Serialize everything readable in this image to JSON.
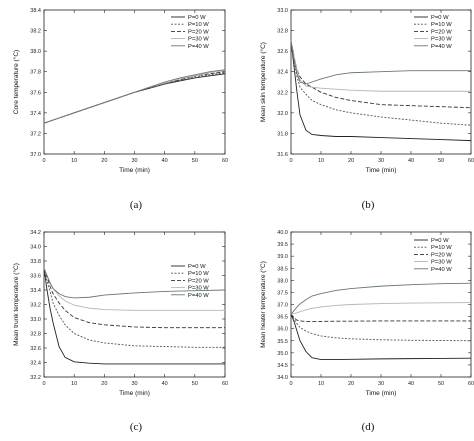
{
  "chart_data": [
    {
      "type": "line",
      "caption": "(a)",
      "xlabel": "Time (min)",
      "ylabel": "Core temperature (°C)",
      "xlim": [
        0,
        60
      ],
      "ylim": [
        37.0,
        38.4
      ],
      "xticks": [
        0,
        10,
        20,
        30,
        40,
        50,
        60
      ],
      "yticks": [
        "37.0",
        "37.2",
        "37.4",
        "37.6",
        "37.8",
        "38.0",
        "38.2",
        "38.4"
      ],
      "legend_position": "top-right",
      "x": [
        0,
        5,
        10,
        15,
        20,
        25,
        30,
        35,
        40,
        45,
        50,
        55,
        60
      ],
      "series": [
        {
          "name": "P=0 W",
          "color": "#222222",
          "dash": "",
          "values": [
            37.3,
            37.35,
            37.4,
            37.45,
            37.5,
            37.55,
            37.6,
            37.64,
            37.68,
            37.71,
            37.74,
            37.76,
            37.78
          ]
        },
        {
          "name": "P=10 W",
          "color": "#555555",
          "dash": "2,1.5",
          "values": [
            37.3,
            37.35,
            37.4,
            37.45,
            37.5,
            37.55,
            37.6,
            37.64,
            37.68,
            37.72,
            37.75,
            37.77,
            37.79
          ]
        },
        {
          "name": "P=20 W",
          "color": "#333333",
          "dash": "4,2",
          "values": [
            37.3,
            37.35,
            37.4,
            37.45,
            37.5,
            37.55,
            37.6,
            37.64,
            37.69,
            37.72,
            37.76,
            37.78,
            37.8
          ]
        },
        {
          "name": "P=30 W",
          "color": "#b5b5b5",
          "dash": "",
          "values": [
            37.3,
            37.35,
            37.4,
            37.45,
            37.5,
            37.55,
            37.6,
            37.65,
            37.69,
            37.73,
            37.76,
            37.79,
            37.81
          ]
        },
        {
          "name": "P=40 W",
          "color": "#6a7a6a",
          "dash": "",
          "values": [
            37.3,
            37.35,
            37.4,
            37.45,
            37.5,
            37.55,
            37.6,
            37.65,
            37.7,
            37.74,
            37.77,
            37.8,
            37.82
          ]
        }
      ]
    },
    {
      "type": "line",
      "caption": "(b)",
      "xlabel": "Time (min)",
      "ylabel": "Mean skin temperature (°C)",
      "xlim": [
        0,
        60
      ],
      "ylim": [
        31.6,
        33.0
      ],
      "xticks": [
        0,
        10,
        20,
        30,
        40,
        50,
        60
      ],
      "yticks": [
        "31.6",
        "31.8",
        "32.0",
        "32.2",
        "32.4",
        "32.6",
        "32.8",
        "33.0"
      ],
      "legend_position": "top-right",
      "x": [
        0,
        1,
        2,
        3,
        5,
        7,
        10,
        15,
        20,
        30,
        40,
        50,
        60
      ],
      "series": [
        {
          "name": "P=0 W",
          "color": "#222222",
          "dash": "",
          "values": [
            32.7,
            32.45,
            32.2,
            31.98,
            31.83,
            31.79,
            31.78,
            31.77,
            31.77,
            31.76,
            31.75,
            31.74,
            31.73
          ]
        },
        {
          "name": "P=10 W",
          "color": "#555555",
          "dash": "2,1.5",
          "values": [
            32.7,
            32.5,
            32.35,
            32.25,
            32.18,
            32.12,
            32.08,
            32.03,
            32.0,
            31.96,
            31.93,
            31.9,
            31.88
          ]
        },
        {
          "name": "P=20 W",
          "color": "#333333",
          "dash": "4,2",
          "values": [
            32.7,
            32.55,
            32.42,
            32.35,
            32.28,
            32.25,
            32.2,
            32.15,
            32.12,
            32.08,
            32.07,
            32.06,
            32.05
          ]
        },
        {
          "name": "P=30 W",
          "color": "#b5b5b5",
          "dash": "",
          "values": [
            32.7,
            32.55,
            32.42,
            32.32,
            32.26,
            32.25,
            32.24,
            32.23,
            32.22,
            32.21,
            32.21,
            32.21,
            32.21
          ]
        },
        {
          "name": "P=40 W",
          "color": "#6a7a6a",
          "dash": "",
          "values": [
            32.7,
            32.52,
            32.38,
            32.3,
            32.28,
            32.3,
            32.33,
            32.37,
            32.39,
            32.4,
            32.41,
            32.41,
            32.41
          ]
        }
      ]
    },
    {
      "type": "line",
      "caption": "(c)",
      "xlabel": "Time (min)",
      "ylabel": "Mean trunk temperature (°C)",
      "xlim": [
        0,
        60
      ],
      "ylim": [
        32.2,
        34.2
      ],
      "xticks": [
        0,
        10,
        20,
        30,
        40,
        50,
        60
      ],
      "yticks": [
        "32.2",
        "32.4",
        "32.6",
        "32.8",
        "33.0",
        "33.2",
        "33.4",
        "33.6",
        "33.8",
        "34.0",
        "34.2"
      ],
      "legend_position": "right",
      "x": [
        0,
        1,
        2,
        3,
        5,
        7,
        10,
        15,
        20,
        30,
        40,
        50,
        60
      ],
      "series": [
        {
          "name": "P=0 W",
          "color": "#222222",
          "dash": "",
          "values": [
            33.7,
            33.4,
            33.15,
            32.95,
            32.62,
            32.47,
            32.41,
            32.39,
            32.38,
            32.38,
            32.38,
            32.38,
            32.38
          ]
        },
        {
          "name": "P=10 W",
          "color": "#555555",
          "dash": "2,1.5",
          "values": [
            33.7,
            33.52,
            33.38,
            33.22,
            33.05,
            32.92,
            32.8,
            32.71,
            32.67,
            32.63,
            32.62,
            32.61,
            32.61
          ]
        },
        {
          "name": "P=20 W",
          "color": "#333333",
          "dash": "4,2",
          "values": [
            33.7,
            33.58,
            33.45,
            33.35,
            33.22,
            33.12,
            33.02,
            32.95,
            32.92,
            32.89,
            32.88,
            32.88,
            32.88
          ]
        },
        {
          "name": "P=30 W",
          "color": "#b5b5b5",
          "dash": "",
          "values": [
            33.7,
            33.6,
            33.5,
            33.42,
            33.32,
            33.25,
            33.19,
            33.15,
            33.13,
            33.12,
            33.12,
            33.12,
            33.12
          ]
        },
        {
          "name": "P=40 W",
          "color": "#6a7a6a",
          "dash": "",
          "values": [
            33.7,
            33.6,
            33.5,
            33.42,
            33.35,
            33.31,
            33.29,
            33.3,
            33.33,
            33.36,
            33.38,
            33.39,
            33.4
          ]
        }
      ]
    },
    {
      "type": "line",
      "caption": "(d)",
      "xlabel": "Time (min)",
      "ylabel": "Mean heater temperature (°C)",
      "xlim": [
        0,
        60
      ],
      "ylim": [
        34.0,
        40.0
      ],
      "xticks": [
        0,
        10,
        20,
        30,
        40,
        50,
        60
      ],
      "yticks": [
        "34.0",
        "34.5",
        "35.0",
        "35.5",
        "36.0",
        "36.5",
        "37.0",
        "37.5",
        "38.0",
        "38.5",
        "39.0",
        "39.5",
        "40.0"
      ],
      "legend_position": "top-right",
      "x": [
        0,
        1,
        2,
        3,
        5,
        7,
        10,
        15,
        20,
        30,
        40,
        50,
        60
      ],
      "series": [
        {
          "name": "P=0 W",
          "color": "#222222",
          "dash": "",
          "values": [
            36.6,
            36.3,
            35.9,
            35.5,
            35.05,
            34.8,
            34.72,
            34.72,
            34.73,
            34.75,
            34.76,
            34.77,
            34.78
          ]
        },
        {
          "name": "P=10 W",
          "color": "#555555",
          "dash": "2,1.5",
          "values": [
            36.6,
            36.4,
            36.2,
            36.05,
            35.9,
            35.8,
            35.7,
            35.62,
            35.58,
            35.54,
            35.52,
            35.51,
            35.5
          ]
        },
        {
          "name": "P=20 W",
          "color": "#333333",
          "dash": "4,2",
          "values": [
            36.6,
            36.45,
            36.35,
            36.32,
            36.3,
            36.3,
            36.3,
            36.31,
            36.31,
            36.32,
            36.32,
            36.32,
            36.32
          ]
        },
        {
          "name": "P=30 W",
          "color": "#b5b5b5",
          "dash": "",
          "values": [
            36.6,
            36.62,
            36.66,
            36.7,
            36.78,
            36.84,
            36.9,
            36.96,
            37.0,
            37.04,
            37.06,
            37.07,
            37.08
          ]
        },
        {
          "name": "P=40 W",
          "color": "#6a7a6a",
          "dash": "",
          "values": [
            36.6,
            36.75,
            36.9,
            37.02,
            37.2,
            37.35,
            37.45,
            37.58,
            37.66,
            37.76,
            37.82,
            37.86,
            37.88
          ]
        }
      ]
    }
  ]
}
